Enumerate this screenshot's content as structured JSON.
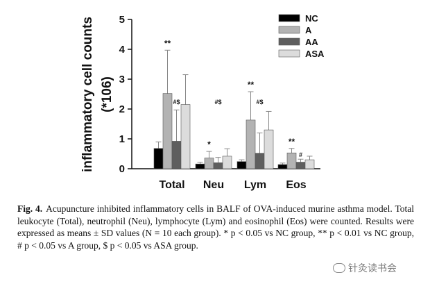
{
  "chart_data": {
    "type": "bar",
    "ylabel": "inflammatory cell counts",
    "yunit": "(*106)",
    "ylim": [
      0,
      5
    ],
    "yticks": [
      "0",
      "1",
      "2",
      "3",
      "4",
      "5"
    ],
    "categories": [
      "Total",
      "Neu",
      "Lym",
      "Eos"
    ],
    "legend_position": "top-right",
    "series": [
      {
        "name": "NC",
        "color": "#000000",
        "values": [
          0.68,
          0.16,
          0.24,
          0.14
        ],
        "errors": [
          0.22,
          0.06,
          0.06,
          0.05
        ]
      },
      {
        "name": "A",
        "color": "#b3b3b3",
        "values": [
          2.52,
          0.36,
          1.63,
          0.53
        ],
        "errors": [
          1.45,
          0.22,
          0.95,
          0.15
        ]
      },
      {
        "name": "AA",
        "color": "#5e5e5e",
        "values": [
          0.92,
          0.2,
          0.52,
          0.22
        ],
        "errors": [
          1.05,
          0.18,
          0.68,
          0.1
        ]
      },
      {
        "name": "ASA",
        "color": "#dcdcdc",
        "values": [
          2.15,
          0.42,
          1.3,
          0.3
        ],
        "errors": [
          1.0,
          0.25,
          0.62,
          0.12
        ]
      }
    ],
    "annotations": [
      {
        "category": 0,
        "series": 1,
        "text": "**"
      },
      {
        "category": 0,
        "series": 2,
        "text": "#$"
      },
      {
        "category": 1,
        "series": 1,
        "text": "*"
      },
      {
        "category": 1,
        "series": 2,
        "text": "#$"
      },
      {
        "category": 2,
        "series": 1,
        "text": "**"
      },
      {
        "category": 2,
        "series": 2,
        "text": "#$"
      },
      {
        "category": 3,
        "series": 1,
        "text": "**"
      },
      {
        "category": 3,
        "series": 2,
        "text": "#"
      }
    ]
  },
  "caption": {
    "label": "Fig. 4.",
    "text": "Acupuncture inhibited inflammatory cells in BALF of OVA-induced murine asthma model. Total leukocyte (Total), neutrophil (Neu), lymphocyte (Lym) and eosinophil (Eos) were counted. Results were expressed as means ± SD values (N = 10 each group). * p < 0.05 vs NC group, ** p < 0.01 vs NC group, # p < 0.05 vs A group, $ p < 0.05 vs ASA group."
  },
  "watermark": {
    "text": "针灸读书会"
  }
}
